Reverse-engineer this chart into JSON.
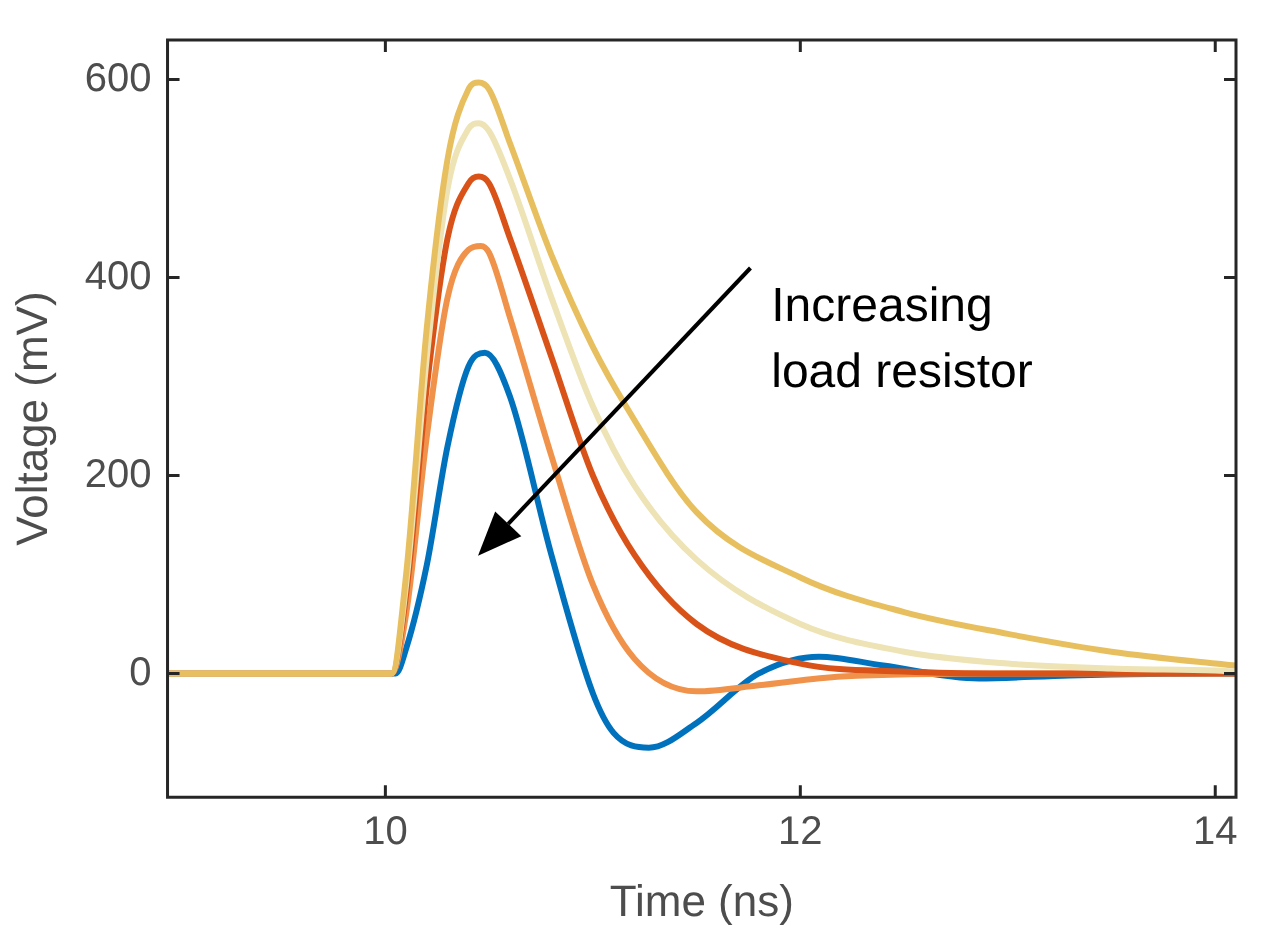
{
  "chart_data": {
    "type": "line",
    "xlabel": "Time (ns)",
    "ylabel": "Voltage (mV)",
    "xlim": [
      8.95,
      14.1
    ],
    "xticks": [
      10,
      12,
      14
    ],
    "ylim": [
      -125,
      640
    ],
    "yticks": [
      0,
      200,
      400,
      600
    ],
    "grid": false,
    "legend": false,
    "marker": "none",
    "line_style": "solid",
    "annotations": [
      "Increasing\nload resistor"
    ],
    "series": [
      {
        "color": "#e8bf5e",
        "x": [
          8.95,
          10,
          10.03,
          10.1,
          10.2,
          10.3,
          10.4,
          10.45,
          10.5,
          10.6,
          10.8,
          11,
          11.16,
          11.5,
          12,
          12.5,
          13,
          13.5,
          14,
          14.1
        ],
        "values": [
          0,
          0,
          0,
          100,
          350,
          520,
          590,
          597,
          590,
          536,
          423,
          330,
          270,
          163,
          97,
          62,
          40,
          22,
          10,
          8
        ]
      },
      {
        "color": "#ede3b5",
        "x": [
          8.95,
          10,
          10.03,
          10.1,
          10.2,
          10.3,
          10.4,
          10.45,
          10.5,
          10.6,
          10.8,
          11,
          11.2,
          11.5,
          12,
          12.5,
          13,
          13.5,
          14,
          14.1
        ],
        "values": [
          0,
          0,
          0,
          90,
          320,
          490,
          550,
          556,
          548,
          500,
          380,
          270,
          190,
          115,
          50,
          22,
          10,
          5,
          3,
          2
        ]
      },
      {
        "color": "#d95319",
        "x": [
          8.95,
          10,
          10.03,
          10.1,
          10.2,
          10.3,
          10.4,
          10.45,
          10.5,
          10.6,
          10.8,
          11,
          11.2,
          11.5,
          12,
          12.5,
          13,
          14,
          14.1
        ],
        "values": [
          0,
          0,
          0,
          80,
          290,
          440,
          495,
          502,
          495,
          440,
          320,
          200,
          120,
          50,
          10,
          2,
          0,
          0,
          0
        ]
      },
      {
        "color": "#f0924a",
        "x": [
          8.95,
          10,
          10.03,
          10.1,
          10.2,
          10.3,
          10.4,
          10.46,
          10.5,
          10.6,
          10.8,
          11,
          11.2,
          11.5,
          11.8,
          12.2,
          13,
          14,
          14.1
        ],
        "values": [
          0,
          0,
          0,
          60,
          240,
          380,
          428,
          432,
          425,
          360,
          220,
          90,
          15,
          -18,
          -12,
          -3,
          0,
          0,
          0
        ]
      },
      {
        "color": "#0072bd",
        "x": [
          8.95,
          10,
          10.05,
          10.1,
          10.2,
          10.3,
          10.4,
          10.48,
          10.6,
          10.8,
          11,
          11.1,
          11.27,
          11.5,
          11.8,
          12.09,
          12.4,
          12.86,
          13.3,
          14,
          14.1
        ],
        "values": [
          0,
          0,
          0,
          25,
          110,
          230,
          310,
          324,
          280,
          120,
          -20,
          -60,
          -75,
          -50,
          0,
          17,
          8,
          -5,
          -2,
          0,
          0
        ]
      }
    ]
  }
}
